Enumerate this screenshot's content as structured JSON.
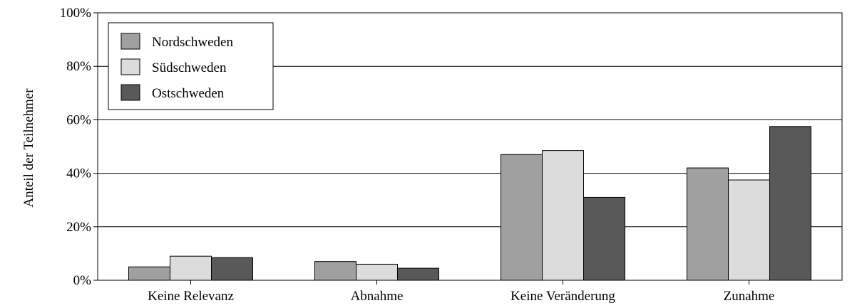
{
  "chart_data": {
    "type": "bar",
    "ylabel": "Anteil der Teilnehmer",
    "xlabel": "",
    "categories": [
      "Keine Relevanz",
      "Abnahme",
      "Keine Veränderung",
      "Zunahme"
    ],
    "y_ticks": [
      "0%",
      "20%",
      "40%",
      "60%",
      "80%",
      "100%"
    ],
    "ylim": [
      0,
      100
    ],
    "grid": true,
    "legend_position": "top-left",
    "series": [
      {
        "name": "Nordschweden",
        "color": "#a0a0a0",
        "values": [
          5,
          7,
          47,
          42
        ]
      },
      {
        "name": "Südschweden",
        "color": "#dcdcdc",
        "values": [
          9,
          6,
          48.5,
          37.5
        ]
      },
      {
        "name": "Ostschweden",
        "color": "#595959",
        "values": [
          8.5,
          4.5,
          31,
          57.5
        ]
      }
    ]
  }
}
